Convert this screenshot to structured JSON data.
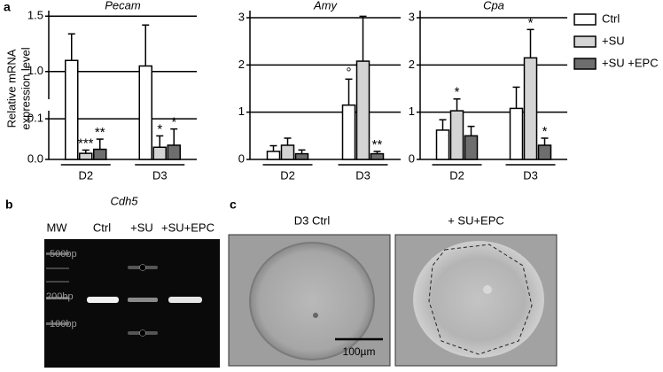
{
  "chart_data": [
    {
      "type": "bar",
      "title": "Pecam",
      "categories": [
        "D2",
        "D3"
      ],
      "ysegments": [
        {
          "ylim": [
            0,
            0.12
          ],
          "yticks": [
            {
              "value": 0,
              "label": "0.0"
            },
            0.1
          ]
        },
        {
          "ylim": [
            0.75,
            1.55
          ],
          "yticks": [
            {
              "value": 1,
              "label": "1.0"
            },
            1.5
          ]
        }
      ],
      "series": [
        {
          "name": "Ctrl",
          "color": "#ffffff",
          "values": [
            1.1,
            1.05
          ],
          "errors": [
            0.24,
            0.37
          ],
          "signif": [
            null,
            null
          ]
        },
        {
          "name": "+SU",
          "color": "#d4d4d4",
          "values": [
            0.015,
            0.03
          ],
          "errors": [
            0.008,
            0.028
          ],
          "signif": [
            "***",
            "*"
          ]
        },
        {
          "name": "+SU +EPC",
          "color": "#6e6e6e",
          "values": [
            0.025,
            0.035
          ],
          "errors": [
            0.025,
            0.04
          ],
          "signif": [
            "**",
            "*"
          ]
        }
      ]
    },
    {
      "type": "bar",
      "title": "Amy",
      "categories": [
        "D2",
        "D3"
      ],
      "ylim": [
        0,
        3.15
      ],
      "yticks": [
        0,
        1,
        2,
        3
      ],
      "series": [
        {
          "color": "#ffffff",
          "values": [
            0.17,
            1.15
          ],
          "errors": [
            0.12,
            0.55
          ],
          "signif": [
            null,
            "°"
          ]
        },
        {
          "color": "#d4d4d4",
          "values": [
            0.3,
            2.08
          ],
          "errors": [
            0.15,
            0.95
          ],
          "signif": [
            null,
            null
          ]
        },
        {
          "color": "#6e6e6e",
          "values": [
            0.12,
            0.12
          ],
          "errors": [
            0.08,
            0.05
          ],
          "signif": [
            null,
            "**"
          ]
        }
      ]
    },
    {
      "type": "bar",
      "title": "Cpa",
      "categories": [
        "D2",
        "D3"
      ],
      "ylim": [
        0,
        3.15
      ],
      "yticks": [
        0,
        1,
        2,
        3
      ],
      "series": [
        {
          "color": "#ffffff",
          "values": [
            0.62,
            1.08
          ],
          "errors": [
            0.22,
            0.45
          ],
          "signif": [
            null,
            null
          ]
        },
        {
          "color": "#d4d4d4",
          "values": [
            1.03,
            2.15
          ],
          "errors": [
            0.25,
            0.6
          ],
          "signif": [
            "*",
            "*"
          ]
        },
        {
          "color": "#6e6e6e",
          "values": [
            0.5,
            0.3
          ],
          "errors": [
            0.2,
            0.15
          ],
          "signif": [
            null,
            "*"
          ]
        }
      ]
    }
  ],
  "figure": {
    "panel_a": {
      "label": "a",
      "ylabel": [
        "Relative mRNA",
        "expression level"
      ]
    },
    "panel_b": {
      "label": "b",
      "gene": "Cdh5",
      "lanes": [
        "MW",
        "Ctrl",
        "+SU",
        "+SU+EPC"
      ],
      "markers": [
        "500bp",
        "200bp",
        "100bp"
      ]
    },
    "panel_c": {
      "label": "c",
      "titles": [
        "D3 Ctrl",
        "+ SU+EPC"
      ],
      "scale_bar": "100µm"
    }
  }
}
